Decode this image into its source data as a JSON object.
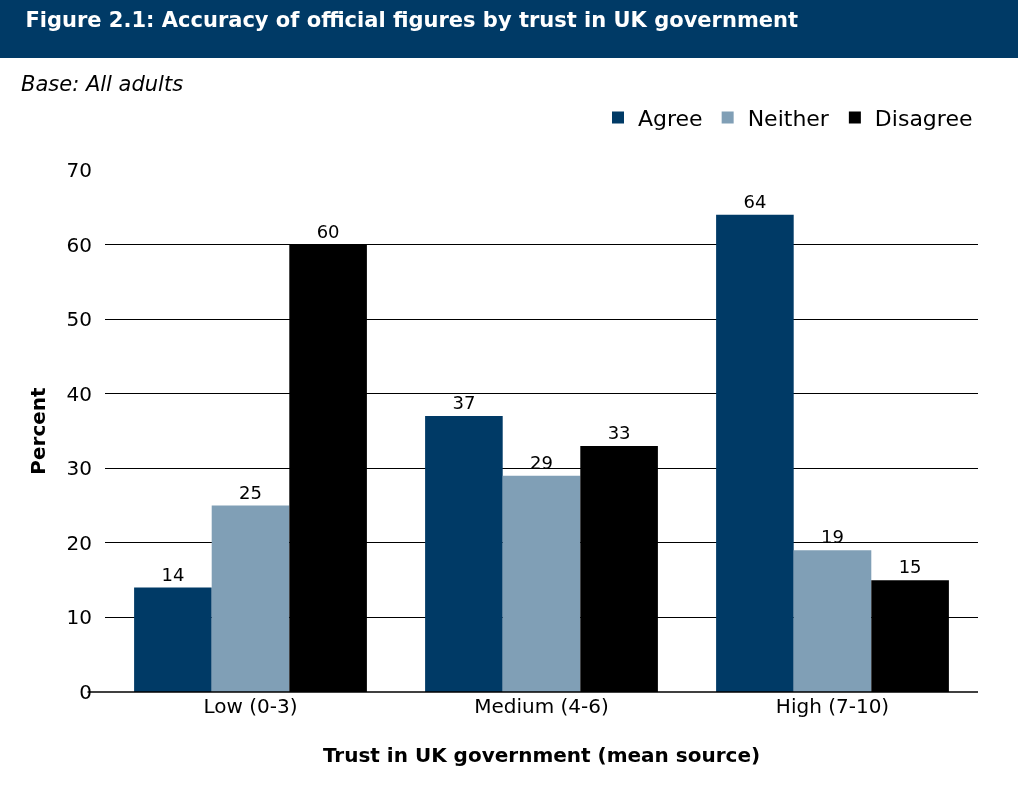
{
  "chart_data": {
    "type": "bar",
    "title": "Figure 2.1: Accuracy of official figures by trust in UK government",
    "subtitle": "Base: All adults",
    "xlabel": "Trust in UK government (mean source)",
    "ylabel": "Percent",
    "categories": [
      "Low (0-3)",
      "Medium (4-6)",
      "High (7-10)"
    ],
    "series": [
      {
        "name": "Agree",
        "color": "#003a66",
        "values": [
          14,
          37,
          64
        ]
      },
      {
        "name": "Neither",
        "color": "#809fb6",
        "values": [
          25,
          29,
          19
        ]
      },
      {
        "name": "Disagree",
        "color": "#000000",
        "values": [
          60,
          33,
          15
        ]
      }
    ],
    "ylim": [
      0,
      70
    ],
    "yticks": [
      0,
      10,
      20,
      30,
      40,
      50,
      60,
      70
    ],
    "grid": "y",
    "legend": "top right",
    "data_labels": true
  }
}
